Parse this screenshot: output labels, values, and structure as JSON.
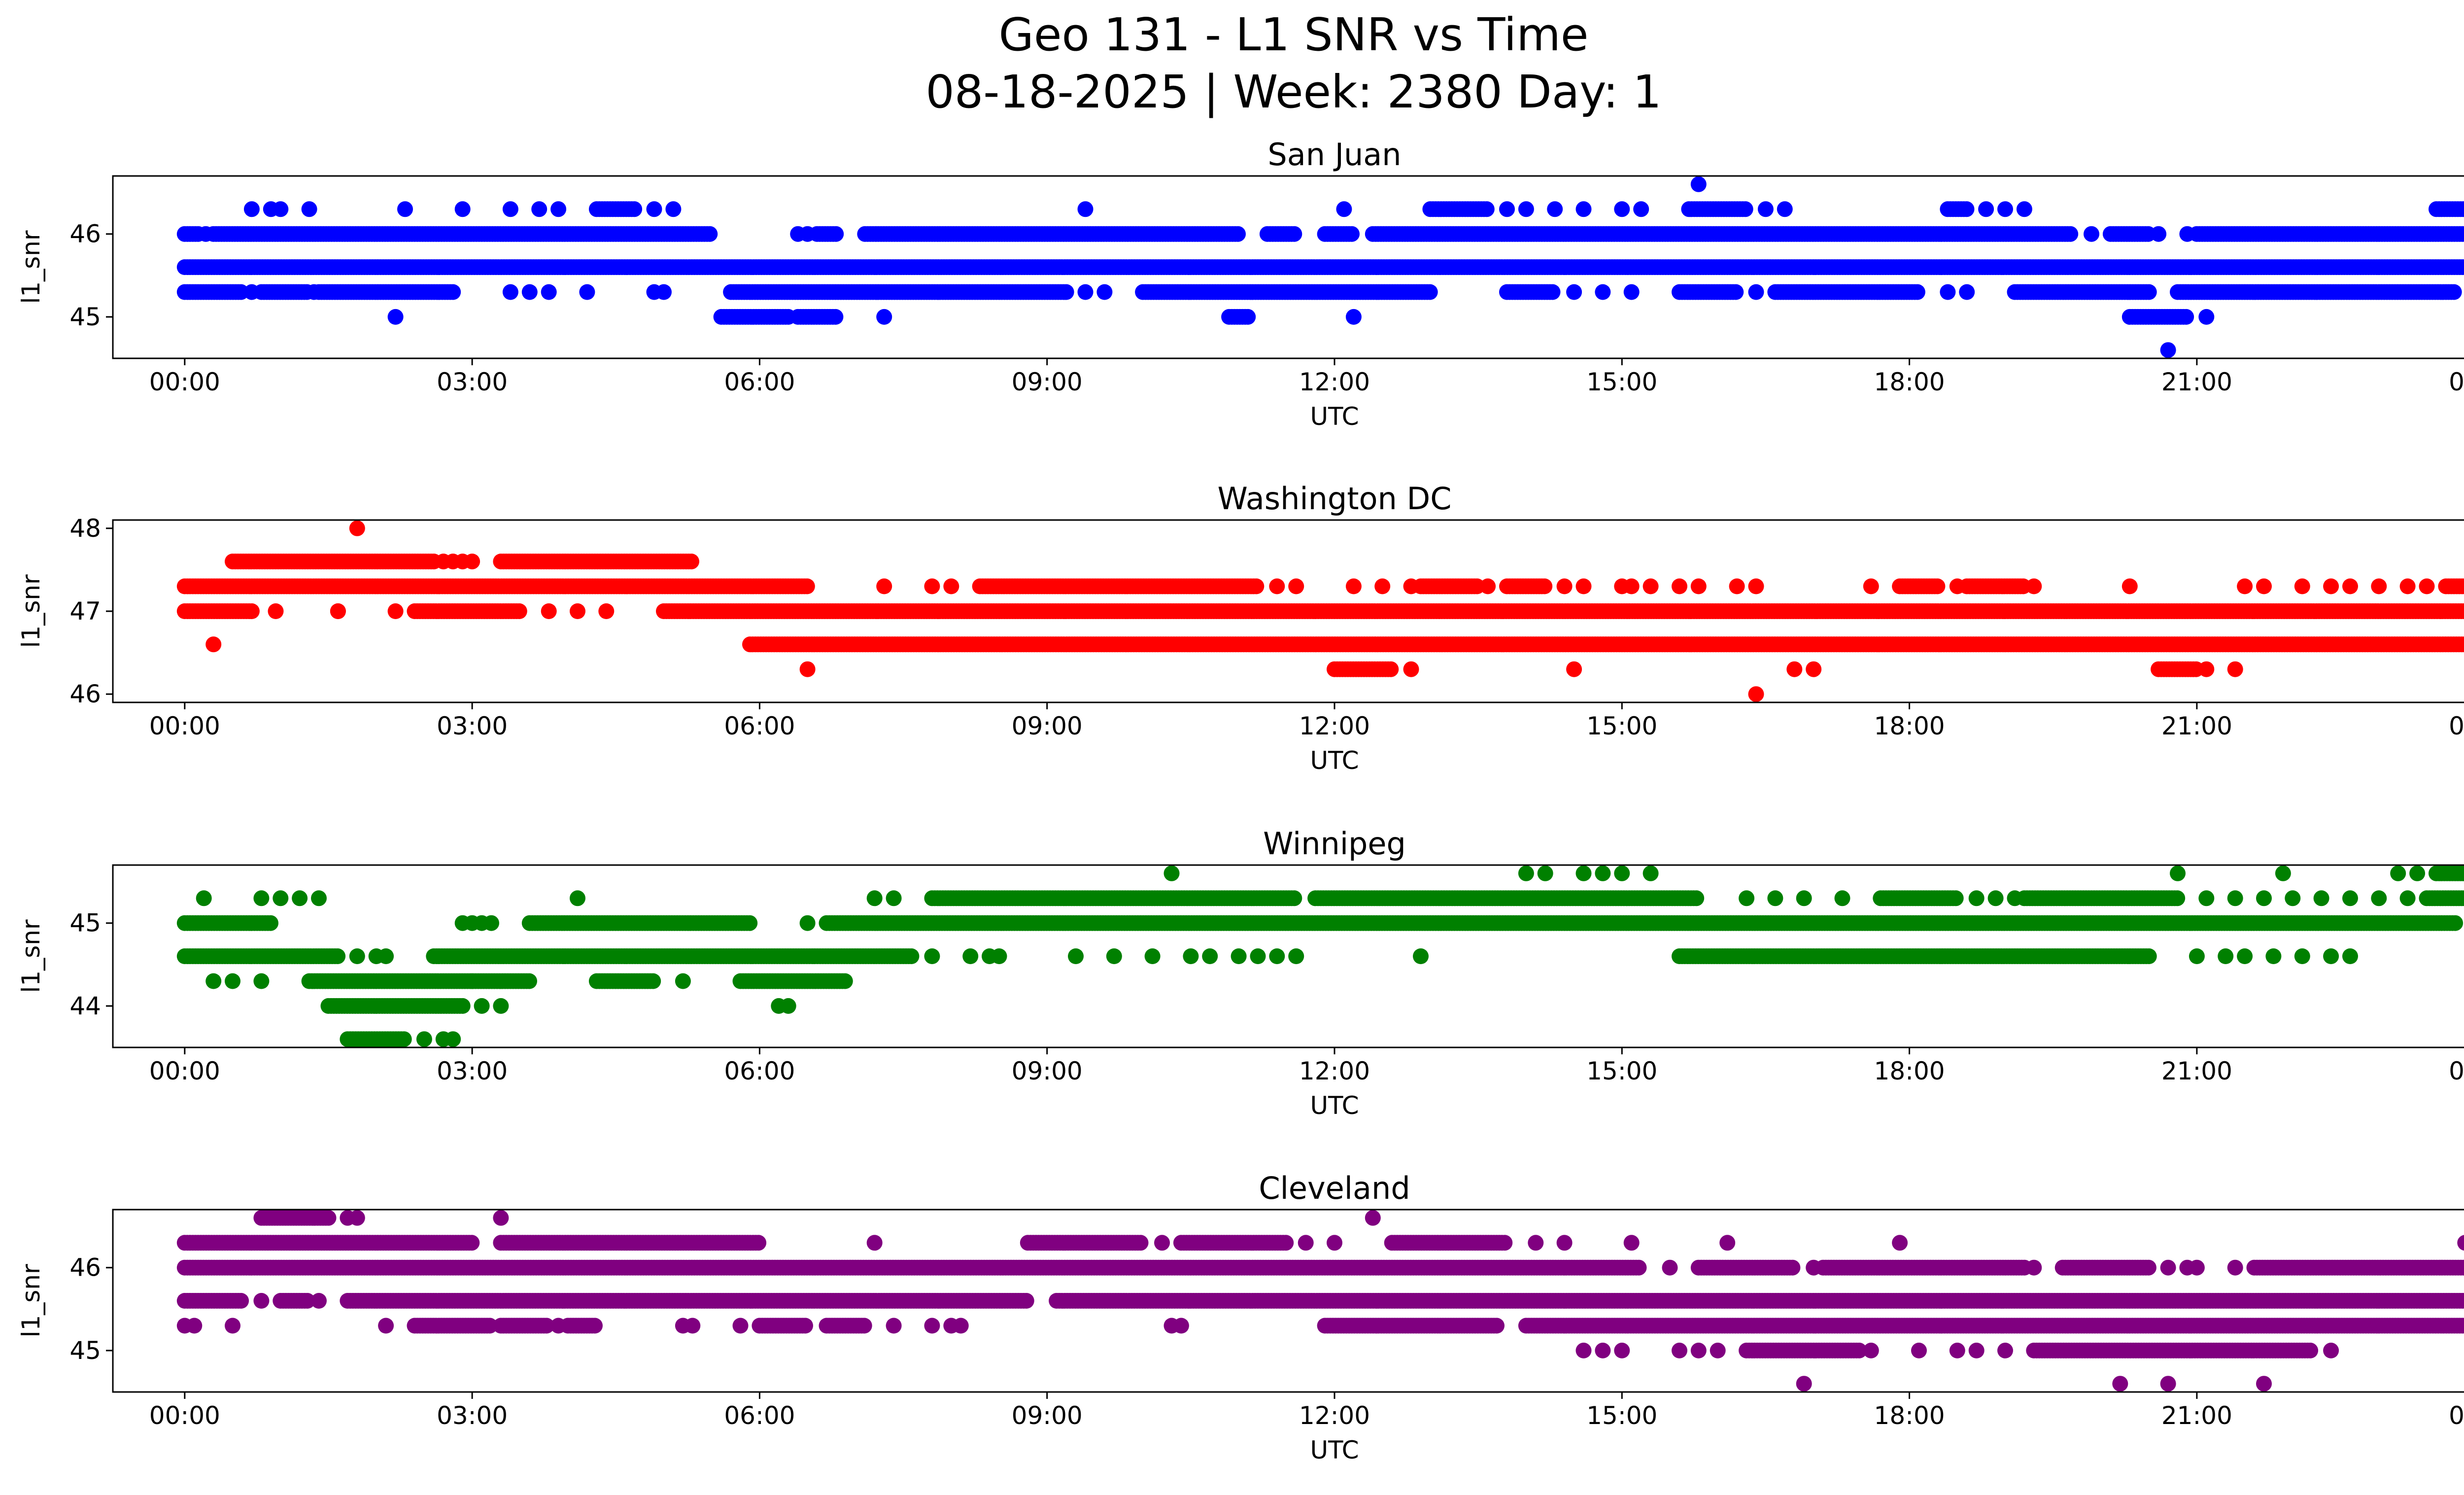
{
  "figure": {
    "title_line1": "Geo 131 - L1 SNR vs Time",
    "title_line2": "08-18-2025 | Week: 2380 Day: 1"
  },
  "chart_data": [
    {
      "type": "scatter",
      "title": "San Juan",
      "xlabel": "UTC",
      "ylabel": "l1_snr",
      "color": "#0000ff",
      "xlim": [
        -0.75,
        24.75
      ],
      "ylim": [
        44.5,
        46.7
      ],
      "xticks": [
        "00:00",
        "03:00",
        "06:00",
        "09:00",
        "12:00",
        "15:00",
        "18:00",
        "21:00",
        "00:00"
      ],
      "yticks": [
        45,
        46
      ],
      "series": [
        {
          "name": "45.6",
          "y": 45.6,
          "x_ranges": [
            [
              0,
              24
            ]
          ],
          "x_points": []
        },
        {
          "name": "46.0",
          "y": 46.0,
          "x_ranges": [
            [
              0,
              0.15
            ],
            [
              0.3,
              5.5
            ],
            [
              6.6,
              6.8
            ],
            [
              7.1,
              11.0
            ],
            [
              11.3,
              11.6
            ],
            [
              11.9,
              12.2
            ],
            [
              12.4,
              19.7
            ],
            [
              20.1,
              20.5
            ],
            [
              21.0,
              23.9
            ]
          ],
          "x_points": [
            0.22,
            6.4,
            6.5,
            19.9,
            20.6,
            20.9
          ]
        },
        {
          "name": "45.3",
          "y": 45.3,
          "x_ranges": [
            [
              0,
              0.6
            ],
            [
              0.8,
              1.3
            ],
            [
              1.4,
              2.8
            ],
            [
              5.7,
              9.2
            ],
            [
              10.0,
              13.0
            ],
            [
              13.8,
              14.3
            ],
            [
              15.6,
              16.2
            ],
            [
              16.6,
              18.1
            ],
            [
              19.1,
              20.5
            ],
            [
              20.8,
              23.7
            ]
          ],
          "x_points": [
            0.7,
            1.35,
            3.4,
            3.6,
            3.8,
            4.2,
            4.9,
            5.0,
            9.4,
            9.6,
            14.5,
            14.8,
            15.1,
            16.4,
            18.4,
            18.6
          ]
        },
        {
          "name": "46.3",
          "y": 46.3,
          "x_ranges": [
            [
              4.3,
              4.7
            ],
            [
              13.0,
              13.6
            ],
            [
              15.7,
              16.3
            ],
            [
              18.4,
              18.6
            ],
            [
              23.5,
              23.9
            ]
          ],
          "x_points": [
            0.7,
            0.9,
            1.0,
            1.3,
            2.3,
            2.9,
            3.4,
            3.7,
            3.9,
            4.9,
            5.1,
            9.4,
            12.1,
            13.8,
            14.0,
            14.3,
            14.6,
            15.0,
            15.2,
            16.5,
            16.7,
            18.8,
            19.0,
            19.2
          ]
        },
        {
          "name": "45.0",
          "y": 45.0,
          "x_ranges": [
            [
              5.6,
              6.3
            ],
            [
              6.4,
              6.8
            ],
            [
              10.9,
              11.1
            ],
            [
              20.3,
              20.9
            ]
          ],
          "x_points": [
            2.2,
            7.3,
            12.2,
            21.1
          ]
        },
        {
          "name": "outliers",
          "y": null,
          "x_ranges": [],
          "points": [
            [
              15.8,
              46.6
            ],
            [
              20.7,
              44.6
            ]
          ]
        }
      ]
    },
    {
      "type": "scatter",
      "title": "Washington DC",
      "xlabel": "UTC",
      "ylabel": "l1_snr",
      "color": "#ff0000",
      "xlim": [
        -0.75,
        24.75
      ],
      "ylim": [
        45.9,
        48.1
      ],
      "xticks": [
        "00:00",
        "03:00",
        "06:00",
        "09:00",
        "12:00",
        "15:00",
        "18:00",
        "21:00",
        "00:00"
      ],
      "yticks": [
        46,
        47,
        48
      ],
      "series": [
        {
          "name": "47.0",
          "y": 47.0,
          "x_ranges": [
            [
              0,
              0.7
            ],
            [
              2.4,
              3.5
            ],
            [
              5.0,
              24
            ]
          ],
          "x_points": [
            0.95,
            1.6,
            2.2,
            3.8,
            4.1,
            4.4
          ]
        },
        {
          "name": "47.3",
          "y": 47.3,
          "x_ranges": [
            [
              0,
              6.5
            ],
            [
              8.3,
              11.2
            ],
            [
              12.9,
              13.5
            ],
            [
              13.8,
              14.2
            ],
            [
              17.9,
              18.3
            ],
            [
              18.6,
              19.2
            ],
            [
              23.6,
              24
            ]
          ],
          "x_points": [
            7.3,
            7.8,
            8.0,
            11.4,
            11.6,
            12.2,
            12.5,
            12.8,
            13.6,
            14.4,
            14.6,
            15.0,
            15.1,
            15.3,
            15.6,
            15.8,
            16.2,
            16.4,
            17.6,
            18.5,
            19.3,
            20.3,
            21.5,
            21.7,
            22.1,
            22.4,
            22.6,
            22.9,
            23.2,
            23.4
          ]
        },
        {
          "name": "46.6",
          "y": 46.6,
          "x_ranges": [
            [
              5.9,
              24
            ]
          ],
          "x_points": [
            0.3
          ]
        },
        {
          "name": "47.6",
          "y": 47.6,
          "x_ranges": [
            [
              0.5,
              2.6
            ],
            [
              3.3,
              5.3
            ]
          ],
          "x_points": [
            2.7,
            2.8,
            2.9,
            3.0
          ]
        },
        {
          "name": "46.3",
          "y": 46.3,
          "x_ranges": [
            [
              12.0,
              12.6
            ],
            [
              20.6,
              21.0
            ]
          ],
          "x_points": [
            6.5,
            12.8,
            14.5,
            16.8,
            17.0,
            21.1,
            21.4
          ]
        },
        {
          "name": "outliers",
          "y": null,
          "x_ranges": [],
          "points": [
            [
              1.8,
              48.0
            ],
            [
              16.4,
              46.0
            ],
            [
              1.6,
              47.0
            ]
          ]
        }
      ]
    },
    {
      "type": "scatter",
      "title": "Winnipeg",
      "xlabel": "UTC",
      "ylabel": "l1_snr",
      "color": "#008000",
      "xlim": [
        -0.75,
        24.75
      ],
      "ylim": [
        43.5,
        45.7
      ],
      "xticks": [
        "00:00",
        "03:00",
        "06:00",
        "09:00",
        "12:00",
        "15:00",
        "18:00",
        "21:00",
        "00:00"
      ],
      "yticks": [
        44,
        45
      ],
      "series": [
        {
          "name": "45.0",
          "y": 45.0,
          "x_ranges": [
            [
              0,
              0.9
            ],
            [
              3.6,
              5.9
            ],
            [
              6.7,
              23.7
            ]
          ],
          "x_points": [
            2.9,
            3.0,
            3.1,
            3.2,
            6.5,
            23.9
          ]
        },
        {
          "name": "44.6",
          "y": 44.6,
          "x_ranges": [
            [
              0,
              1.6
            ],
            [
              2.6,
              7.6
            ],
            [
              15.6,
              20.5
            ]
          ],
          "x_points": [
            1.8,
            2.0,
            2.1,
            7.8,
            8.2,
            8.4,
            8.5,
            9.3,
            9.7,
            10.1,
            10.5,
            10.7,
            11.0,
            11.2,
            11.4,
            11.6,
            12.9,
            21.0,
            21.3,
            21.5,
            21.8,
            22.1,
            22.4,
            22.6
          ]
        },
        {
          "name": "45.3",
          "y": 45.3,
          "x_ranges": [
            [
              7.8,
              11.6
            ],
            [
              11.8,
              15.8
            ],
            [
              17.7,
              18.5
            ],
            [
              19.2,
              20.8
            ],
            [
              23.4,
              24
            ]
          ],
          "x_points": [
            0.2,
            0.8,
            1.0,
            1.2,
            1.4,
            7.2,
            7.4,
            4.1,
            16.3,
            16.6,
            16.9,
            17.3,
            18.7,
            18.9,
            19.1,
            21.1,
            21.4,
            21.7,
            22.0,
            22.3,
            22.6,
            22.9,
            23.2
          ]
        },
        {
          "name": "44.3",
          "y": 44.3,
          "x_ranges": [
            [
              1.3,
              3.6
            ],
            [
              4.3,
              4.9
            ],
            [
              5.8,
              6.9
            ]
          ],
          "x_points": [
            0.3,
            0.5,
            0.8,
            3.0,
            5.2
          ]
        },
        {
          "name": "44.0",
          "y": 44.0,
          "x_ranges": [
            [
              1.5,
              2.9
            ]
          ],
          "x_points": [
            3.1,
            3.3,
            6.2,
            6.3
          ]
        },
        {
          "name": "43.6",
          "y": 43.6,
          "x_ranges": [
            [
              1.7,
              2.3
            ]
          ],
          "x_points": [
            2.5,
            2.7,
            2.8
          ]
        },
        {
          "name": "45.6",
          "y": 45.6,
          "x_ranges": [
            [
              23.5,
              24
            ]
          ],
          "x_points": [
            10.3,
            14.0,
            14.2,
            14.6,
            14.8,
            15.0,
            15.3,
            20.8,
            21.9,
            23.1,
            23.3
          ]
        }
      ]
    },
    {
      "type": "scatter",
      "title": "Cleveland",
      "xlabel": "UTC",
      "ylabel": "l1_snr",
      "color": "#800080",
      "xlim": [
        -0.75,
        24.75
      ],
      "ylim": [
        44.5,
        46.7
      ],
      "xticks": [
        "00:00",
        "03:00",
        "06:00",
        "09:00",
        "12:00",
        "15:00",
        "18:00",
        "21:00",
        "00:00"
      ],
      "yticks": [
        45,
        46
      ],
      "series": [
        {
          "name": "46.0",
          "y": 46.0,
          "x_ranges": [
            [
              0,
              15.2
            ],
            [
              15.8,
              16.8
            ],
            [
              17.1,
              19.2
            ],
            [
              19.6,
              20.5
            ],
            [
              21.6,
              24
            ]
          ],
          "x_points": [
            15.5,
            17.0,
            19.3,
            20.7,
            20.9,
            21.0,
            21.4
          ]
        },
        {
          "name": "46.3",
          "y": 46.3,
          "x_ranges": [
            [
              0,
              3.0
            ],
            [
              3.3,
              6.0
            ],
            [
              8.8,
              10.0
            ],
            [
              10.4,
              11.5
            ],
            [
              12.6,
              13.8
            ]
          ],
          "x_points": [
            7.2,
            10.2,
            11.7,
            12.0,
            14.1,
            14.4,
            16.1,
            15.1,
            17.9,
            23.8
          ]
        },
        {
          "name": "45.6",
          "y": 45.6,
          "x_ranges": [
            [
              0,
              0.6
            ],
            [
              1.0,
              1.3
            ],
            [
              1.7,
              8.8
            ],
            [
              9.1,
              24
            ]
          ],
          "x_points": [
            0.8,
            1.4
          ]
        },
        {
          "name": "45.3",
          "y": 45.3,
          "x_ranges": [
            [
              2.4,
              3.2
            ],
            [
              3.3,
              3.8
            ],
            [
              4.0,
              4.3
            ],
            [
              6.0,
              6.5
            ],
            [
              6.7,
              7.1
            ],
            [
              11.9,
              13.7
            ],
            [
              14.0,
              24
            ]
          ],
          "x_points": [
            0,
            0.1,
            0.5,
            2.1,
            3.9,
            5.2,
            5.3,
            5.8,
            7.4,
            7.8,
            8.0,
            8.1,
            10.3,
            10.4
          ]
        },
        {
          "name": "45.0",
          "y": 45.0,
          "x_ranges": [
            [
              16.3,
              17.5
            ],
            [
              19.3,
              22.2
            ]
          ],
          "x_points": [
            14.6,
            14.8,
            15.0,
            15.6,
            15.8,
            16.0,
            17.6,
            18.1,
            18.5,
            18.7,
            19.0,
            22.4
          ]
        },
        {
          "name": "46.6",
          "y": 46.6,
          "x_ranges": [
            [
              0.8,
              1.5
            ]
          ],
          "x_points": [
            1.7,
            1.8,
            3.3,
            12.4
          ]
        },
        {
          "name": "44.6",
          "y": 44.6,
          "x_ranges": [],
          "x_points": [
            16.9,
            20.2,
            20.7,
            21.7
          ]
        }
      ]
    }
  ]
}
